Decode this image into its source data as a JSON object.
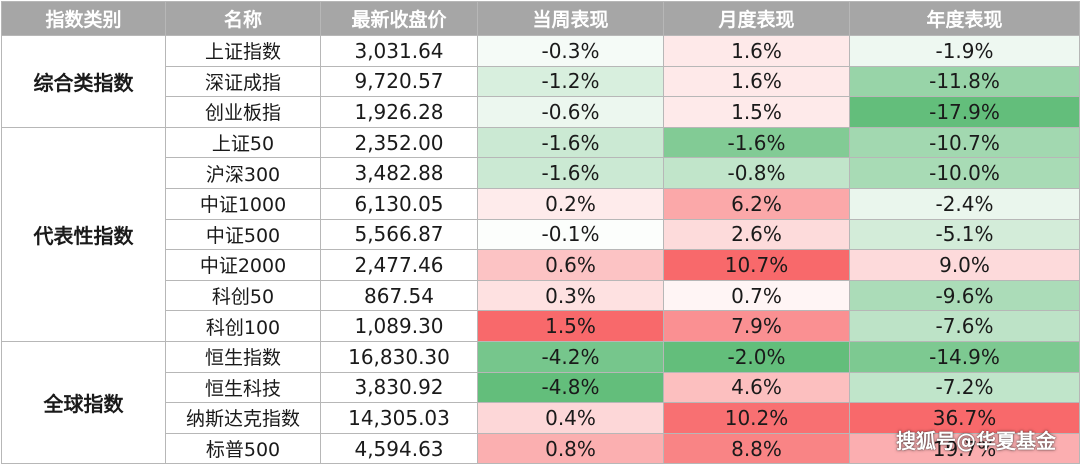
{
  "chart_data": {
    "type": "table",
    "headers": [
      "指数类别",
      "名称",
      "最新收盘价",
      "当周表现",
      "月度表现",
      "年度表现"
    ],
    "groups": [
      {
        "category": "综合类指数",
        "rows": [
          {
            "name": "上证指数",
            "close": "3,031.64",
            "weekly": "-0.3%",
            "monthly": "1.6%",
            "yearly": "-1.9%"
          },
          {
            "name": "深证成指",
            "close": "9,720.57",
            "weekly": "-1.2%",
            "monthly": "1.6%",
            "yearly": "-11.8%"
          },
          {
            "name": "创业板指",
            "close": "1,926.28",
            "weekly": "-0.6%",
            "monthly": "1.5%",
            "yearly": "-17.9%"
          }
        ]
      },
      {
        "category": "代表性指数",
        "rows": [
          {
            "name": "上证50",
            "close": "2,352.00",
            "weekly": "-1.6%",
            "monthly": "-1.6%",
            "yearly": "-10.7%"
          },
          {
            "name": "沪深300",
            "close": "3,482.88",
            "weekly": "-1.6%",
            "monthly": "-0.8%",
            "yearly": "-10.0%"
          },
          {
            "name": "中证1000",
            "close": "6,130.05",
            "weekly": "0.2%",
            "monthly": "6.2%",
            "yearly": "-2.4%"
          },
          {
            "name": "中证500",
            "close": "5,566.87",
            "weekly": "-0.1%",
            "monthly": "2.6%",
            "yearly": "-5.1%"
          },
          {
            "name": "中证2000",
            "close": "2,477.46",
            "weekly": "0.6%",
            "monthly": "10.7%",
            "yearly": "9.0%"
          },
          {
            "name": "科创50",
            "close": "867.54",
            "weekly": "0.3%",
            "monthly": "0.7%",
            "yearly": "-9.6%"
          },
          {
            "name": "科创100",
            "close": "1,089.30",
            "weekly": "1.5%",
            "monthly": "7.9%",
            "yearly": "-7.6%"
          }
        ]
      },
      {
        "category": "全球指数",
        "rows": [
          {
            "name": "恒生指数",
            "close": "16,830.30",
            "weekly": "-4.2%",
            "monthly": "-2.0%",
            "yearly": "-14.9%"
          },
          {
            "name": "恒生科技",
            "close": "3,830.92",
            "weekly": "-4.8%",
            "monthly": "4.6%",
            "yearly": "-7.2%"
          },
          {
            "name": "纳斯达克指数",
            "close": "14,305.03",
            "weekly": "0.4%",
            "monthly": "10.2%",
            "yearly": "36.7%"
          },
          {
            "name": "标普500",
            "close": "4,594.63",
            "weekly": "0.8%",
            "monthly": "8.8%",
            "yearly": "19.7%"
          }
        ]
      }
    ],
    "color_scale": {
      "negative": "#63be7b",
      "neutral": "#ffffff",
      "positive": "#f8696b"
    }
  },
  "watermark": "搜狐号@华夏基金"
}
